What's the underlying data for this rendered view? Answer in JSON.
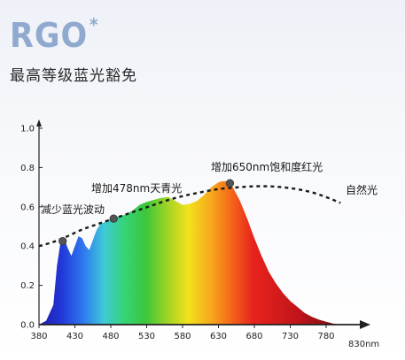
{
  "brand": {
    "name": "RGO",
    "mark": "*"
  },
  "subtitle": "最高等级蓝光豁免",
  "chart_data": {
    "type": "area",
    "x_unit": "nm",
    "xlim": [
      380,
      830
    ],
    "ylim": [
      0,
      1.0
    ],
    "x_ticks": [
      "380",
      "430",
      "480",
      "530",
      "580",
      "630",
      "680",
      "730",
      "780"
    ],
    "x_end_label": "830nm",
    "y_ticks": [
      "0.0",
      "0.2",
      "0.4",
      "0.6",
      "0.8",
      "1.0"
    ],
    "series": [
      {
        "kind": "spectrum-fill",
        "x": [
          380,
          390,
          400,
          405,
          410,
          415,
          420,
          425,
          430,
          435,
          440,
          445,
          450,
          455,
          460,
          465,
          470,
          480,
          490,
          500,
          510,
          520,
          530,
          540,
          550,
          560,
          570,
          580,
          590,
          600,
          610,
          620,
          630,
          635,
          640,
          645,
          650,
          660,
          670,
          680,
          690,
          700,
          710,
          720,
          730,
          740,
          750,
          760,
          770,
          780,
          790,
          800
        ],
        "y": [
          0.0,
          0.02,
          0.1,
          0.3,
          0.42,
          0.44,
          0.39,
          0.35,
          0.4,
          0.45,
          0.44,
          0.4,
          0.38,
          0.43,
          0.48,
          0.51,
          0.52,
          0.54,
          0.55,
          0.56,
          0.58,
          0.61,
          0.625,
          0.635,
          0.645,
          0.65,
          0.63,
          0.61,
          0.615,
          0.63,
          0.66,
          0.7,
          0.725,
          0.73,
          0.73,
          0.72,
          0.7,
          0.63,
          0.54,
          0.44,
          0.35,
          0.27,
          0.21,
          0.16,
          0.12,
          0.09,
          0.06,
          0.04,
          0.025,
          0.015,
          0.005,
          0.0
        ]
      },
      {
        "kind": "dashed",
        "x": [
          380,
          400,
          420,
          440,
          460,
          480,
          500,
          520,
          540,
          560,
          580,
          600,
          620,
          640,
          660,
          680,
          700,
          720,
          740,
          760,
          780,
          800
        ],
        "y": [
          0.4,
          0.42,
          0.45,
          0.485,
          0.51,
          0.535,
          0.56,
          0.585,
          0.61,
          0.635,
          0.655,
          0.67,
          0.685,
          0.695,
          0.7,
          0.705,
          0.705,
          0.7,
          0.69,
          0.675,
          0.65,
          0.62
        ]
      }
    ],
    "markers": [
      {
        "x": 413,
        "y": 0.425
      },
      {
        "x": 484,
        "y": 0.54
      },
      {
        "x": 646,
        "y": 0.72
      }
    ],
    "annotations": [
      {
        "text": "减少蓝光波动"
      },
      {
        "text": "增加478nm天青光"
      },
      {
        "text": "增加650nm饱和度红光"
      },
      {
        "text": "自然光"
      }
    ]
  }
}
